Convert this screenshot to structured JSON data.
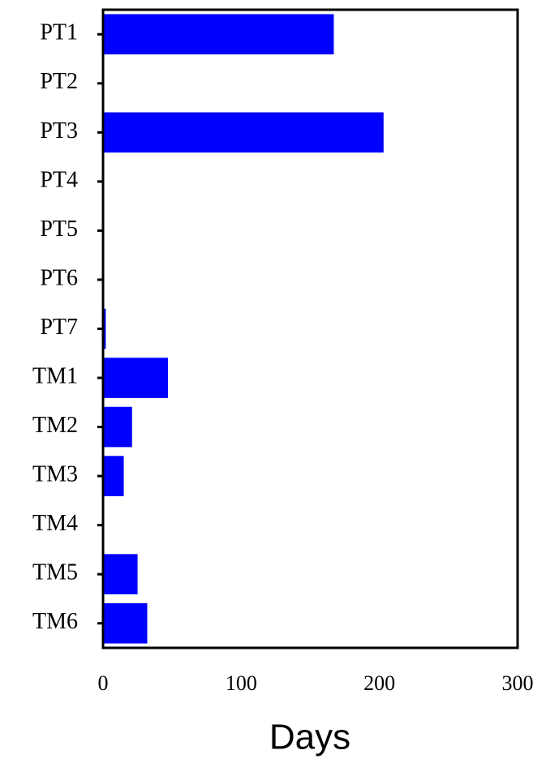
{
  "chart_data": {
    "type": "barh",
    "x_label": "Days",
    "categories": [
      "PT1",
      "PT2",
      "PT3",
      "PT4",
      "PT5",
      "PT6",
      "PT7",
      "TM1",
      "TM2",
      "TM3",
      "TM4",
      "TM5",
      "TM6"
    ],
    "values": [
      167,
      0,
      203,
      0,
      0,
      0,
      2,
      47,
      21,
      15,
      0,
      25,
      32
    ],
    "color": "#0000ff",
    "xlim": [
      0,
      300
    ],
    "xticks": [
      0,
      100,
      200,
      300
    ],
    "grid": false
  }
}
